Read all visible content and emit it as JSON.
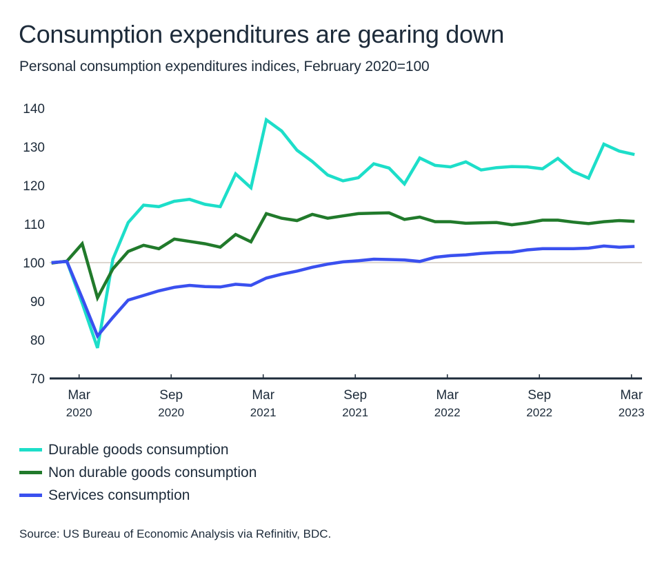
{
  "header": {
    "title": "Consumption expenditures are gearing down",
    "subtitle": "Personal consumption expenditures indices, February 2020=100"
  },
  "source": "Source: US Bureau of Economic Analysis via Refinitiv, BDC.",
  "chart_data": {
    "type": "line",
    "title": "Consumption expenditures are gearing down",
    "subtitle": "Personal consumption expenditures indices, February 2020=100",
    "xlabel": "",
    "ylabel": "",
    "x": [
      "Jan 2020",
      "Feb 2020",
      "Mar 2020",
      "Apr 2020",
      "May 2020",
      "Jun 2020",
      "Jul 2020",
      "Aug 2020",
      "Sep 2020",
      "Oct 2020",
      "Nov 2020",
      "Dec 2020",
      "Jan 2021",
      "Feb 2021",
      "Mar 2021",
      "Apr 2021",
      "May 2021",
      "Jun 2021",
      "Jul 2021",
      "Aug 2021",
      "Sep 2021",
      "Oct 2021",
      "Nov 2021",
      "Dec 2021",
      "Jan 2022",
      "Feb 2022",
      "Mar 2022",
      "Apr 2022",
      "May 2022",
      "Jun 2022",
      "Jul 2022",
      "Aug 2022",
      "Sep 2022",
      "Oct 2022",
      "Nov 2022",
      "Dec 2022",
      "Jan 2023",
      "Feb 2023",
      "Mar 2023"
    ],
    "x_ticks": [
      {
        "index": 2,
        "month": "Mar",
        "year": "2020"
      },
      {
        "index": 8,
        "month": "Sep",
        "year": "2020"
      },
      {
        "index": 14,
        "month": "Mar",
        "year": "2021"
      },
      {
        "index": 20,
        "month": "Sep",
        "year": "2021"
      },
      {
        "index": 26,
        "month": "Mar",
        "year": "2022"
      },
      {
        "index": 32,
        "month": "Sep",
        "year": "2022"
      },
      {
        "index": 38,
        "month": "Mar",
        "year": "2023"
      }
    ],
    "ylim": [
      70,
      140
    ],
    "y_ticks": [
      70,
      80,
      90,
      100,
      110,
      120,
      130,
      140
    ],
    "reference_line": 100,
    "grid": false,
    "legend_position": "bottom-left",
    "series": [
      {
        "name": "Durable goods consumption",
        "color": "#1ddec9",
        "values": [
          100.0,
          100.3,
          89.5,
          77.9,
          100.9,
          110.4,
          114.9,
          114.5,
          115.9,
          116.4,
          115.1,
          114.5,
          123.0,
          119.4,
          137.0,
          134.1,
          129.1,
          126.2,
          122.7,
          121.2,
          122.0,
          125.6,
          124.5,
          120.4,
          127.1,
          125.2,
          124.8,
          126.1,
          124.0,
          124.6,
          124.9,
          124.8,
          124.3,
          127.0,
          123.6,
          121.9,
          130.7,
          128.9,
          128.0
        ]
      },
      {
        "name": "Non durable goods consumption",
        "color": "#217a2b",
        "values": [
          99.9,
          100.4,
          104.9,
          90.9,
          98.4,
          102.9,
          104.5,
          103.6,
          106.1,
          105.5,
          104.9,
          104.0,
          107.3,
          105.4,
          112.7,
          111.5,
          110.9,
          112.5,
          111.5,
          112.1,
          112.7,
          112.8,
          112.9,
          111.2,
          111.8,
          110.6,
          110.6,
          110.2,
          110.3,
          110.4,
          109.8,
          110.3,
          111.0,
          111.0,
          110.5,
          110.1,
          110.6,
          110.9,
          110.7
        ]
      },
      {
        "name": "Services consumption",
        "color": "#3a50ef",
        "values": [
          100.0,
          100.3,
          90.8,
          81.0,
          85.8,
          90.3,
          91.5,
          92.7,
          93.6,
          94.1,
          93.8,
          93.7,
          94.4,
          94.1,
          96.0,
          97.0,
          97.8,
          98.8,
          99.6,
          100.2,
          100.5,
          100.9,
          100.8,
          100.7,
          100.3,
          101.4,
          101.8,
          102.0,
          102.4,
          102.6,
          102.7,
          103.3,
          103.6,
          103.6,
          103.6,
          103.75,
          104.3,
          104.0,
          104.2
        ]
      }
    ]
  },
  "colors": {
    "text": "#1d2b3a",
    "axis": "#1d2b3a",
    "reference_line": "#ddd6d0"
  }
}
